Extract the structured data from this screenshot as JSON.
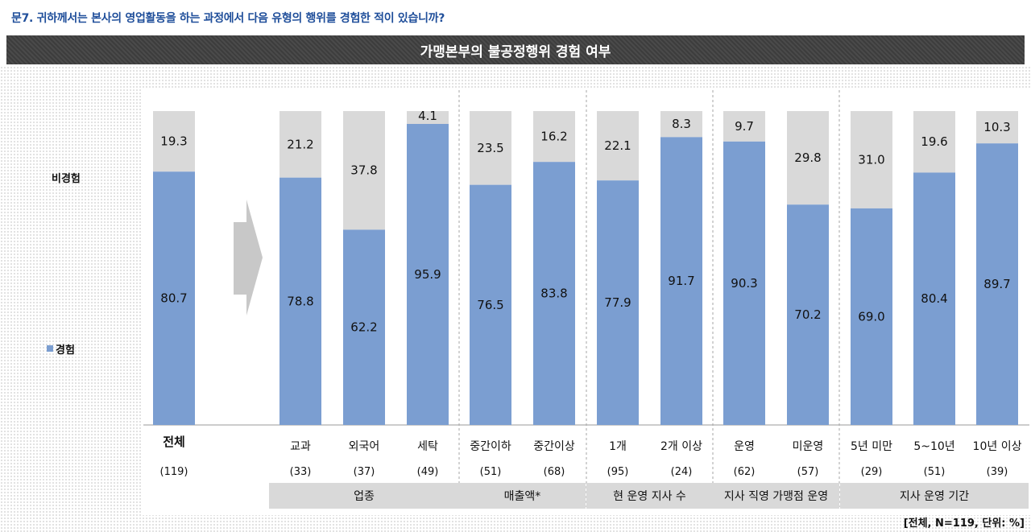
{
  "question": "문7. 귀하께서는 본사의 영업활동을 하는 과정에서 다음 유형의 행위를 경험한 적이 있습니까?",
  "banner_title": "가맹본부의 불공정행위 경험 여부",
  "legend": [
    {
      "label": "비경험",
      "color": "#d9d9d9"
    },
    {
      "label": "경험",
      "color": "#7b9ed1"
    }
  ],
  "footer_note": "[전체, N=119, 단위: %]",
  "chart_data": {
    "type": "bar",
    "stacked": true,
    "ylim": [
      0,
      100
    ],
    "categories": [
      "전체",
      "교과",
      "외국어",
      "세탁",
      "중간이하",
      "중간이상",
      "1개",
      "2개 이상",
      "운영",
      "미운영",
      "5년 미만",
      "5~10년",
      "10년 이상"
    ],
    "counts": [
      "(119)",
      "(33)",
      "(37)",
      "(49)",
      "(51)",
      "(68)",
      "(95)",
      "(24)",
      "(62)",
      "(57)",
      "(29)",
      "(51)",
      "(39)"
    ],
    "series": [
      {
        "name": "경험",
        "color": "#7b9ed1",
        "values": [
          80.7,
          78.8,
          62.2,
          95.9,
          76.5,
          83.8,
          77.9,
          91.7,
          90.3,
          70.2,
          69.0,
          80.4,
          89.7
        ]
      },
      {
        "name": "비경험",
        "color": "#d9d9d9",
        "values": [
          19.3,
          21.2,
          37.8,
          4.1,
          23.5,
          16.2,
          22.1,
          8.3,
          9.7,
          29.8,
          31.0,
          19.6,
          10.3
        ]
      }
    ],
    "value_labels_experienced": [
      "80.7",
      "78.8",
      "62.2",
      "95.9",
      "76.5",
      "83.8",
      "77.9",
      "91.7",
      "90.3",
      "70.2",
      "69.0",
      "80.4",
      "89.7"
    ],
    "value_labels_not": [
      "19.3",
      "21.2",
      "37.8",
      "4.1",
      "23.5",
      "16.2",
      "22.1",
      "8.3",
      "9.7",
      "29.8",
      "31.0",
      "19.6",
      "10.3"
    ],
    "groups": [
      {
        "label": "업종",
        "start": 1,
        "end": 3
      },
      {
        "label": "매출액*",
        "start": 4,
        "end": 5
      },
      {
        "label": "현 운영 지사 수",
        "start": 6,
        "end": 7
      },
      {
        "label": "지사 직영 가맹점 운영",
        "start": 8,
        "end": 9
      },
      {
        "label": "지사 운영 기간",
        "start": 10,
        "end": 12
      }
    ]
  }
}
